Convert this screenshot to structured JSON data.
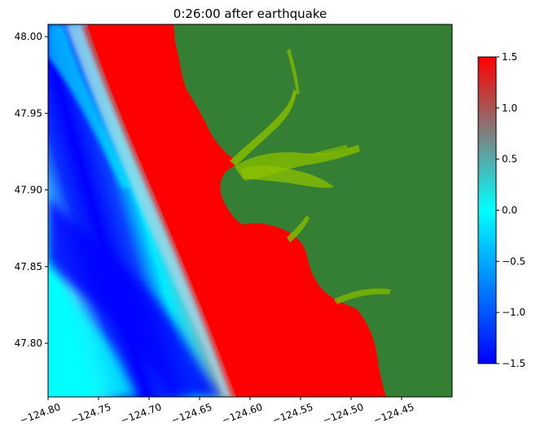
{
  "chart_data": {
    "type": "heatmap",
    "title": "0:26:00 after earthquake",
    "xlabel": "",
    "ylabel": "",
    "xlim": [
      -124.8,
      -124.4
    ],
    "ylim": [
      47.765,
      48.008
    ],
    "xticks": [
      -124.8,
      -124.75,
      -124.7,
      -124.65,
      -124.6,
      -124.55,
      -124.5,
      -124.45
    ],
    "xtick_labels": [
      "−124.80",
      "−124.75",
      "−124.70",
      "−124.65",
      "−124.60",
      "−124.55",
      "−124.50",
      "−124.45"
    ],
    "yticks": [
      47.8,
      47.85,
      47.9,
      47.95,
      48.0
    ],
    "ytick_labels": [
      "47.80",
      "47.85",
      "47.90",
      "47.95",
      "48.00"
    ],
    "colorbar": {
      "vmin": -1.5,
      "vmax": 1.5,
      "ticks": [
        -1.5,
        -1.0,
        -0.5,
        0.0,
        0.5,
        1.0,
        1.5
      ],
      "tick_labels": [
        "−1.5",
        "−1.0",
        "−0.5",
        "0.0",
        "0.5",
        "1.0",
        "1.5"
      ],
      "colors": [
        "#0000ff",
        "#00ffff",
        "#7f7f7f",
        "#ff0000"
      ]
    },
    "land_color": "#357f34",
    "inundation_color": "#7fb800"
  }
}
